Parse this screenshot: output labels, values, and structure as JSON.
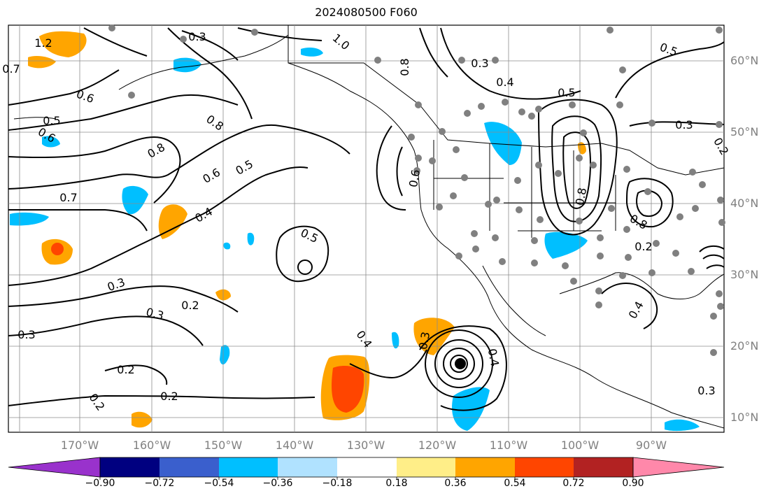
{
  "title": "2024080500 F060",
  "lat_labels": [
    "60°N",
    "50°N",
    "40°N",
    "30°N",
    "20°N",
    "10°N"
  ],
  "lon_labels": [
    "170°W",
    "160°W",
    "150°W",
    "140°W",
    "130°W",
    "120°W",
    "110°W",
    "100°W",
    "90°W"
  ],
  "colorbar": {
    "ticks": [
      "−0.90",
      "−0.72",
      "−0.54",
      "−0.36",
      "−0.18",
      "0.18",
      "0.36",
      "0.54",
      "0.72",
      "0.90"
    ],
    "colors": [
      "#9932cc",
      "#000080",
      "#3a5fcd",
      "#00bfff",
      "#b0e2ff",
      "#ffffff",
      "#ffee88",
      "#ffa500",
      "#ff4500",
      "#b22222",
      "#ff88aa"
    ]
  },
  "contour_labels": [
    "1.2",
    "0.7",
    "0.6",
    "0.5",
    "0.6",
    "0.8",
    "0.8",
    "0.7",
    "0.6",
    "0.5",
    "0.4",
    "0.3",
    "0.3",
    "0.2",
    "0.3",
    "0.2",
    "0.2",
    "0.2",
    "0.5",
    "1.0",
    "0.8",
    "0.3",
    "0.4",
    "0.5",
    "0.3",
    "0.8",
    "0.4",
    "0.3",
    "0.4",
    "0.3",
    "0.2",
    "0.8",
    "0.4",
    "0.5",
    "0.6",
    "0.3",
    "0.2"
  ],
  "fill_colors": {
    "orange": "#ffa500",
    "red_orange": "#ff4500",
    "light_blue": "#00bfff",
    "yellow": "#ffee88"
  }
}
